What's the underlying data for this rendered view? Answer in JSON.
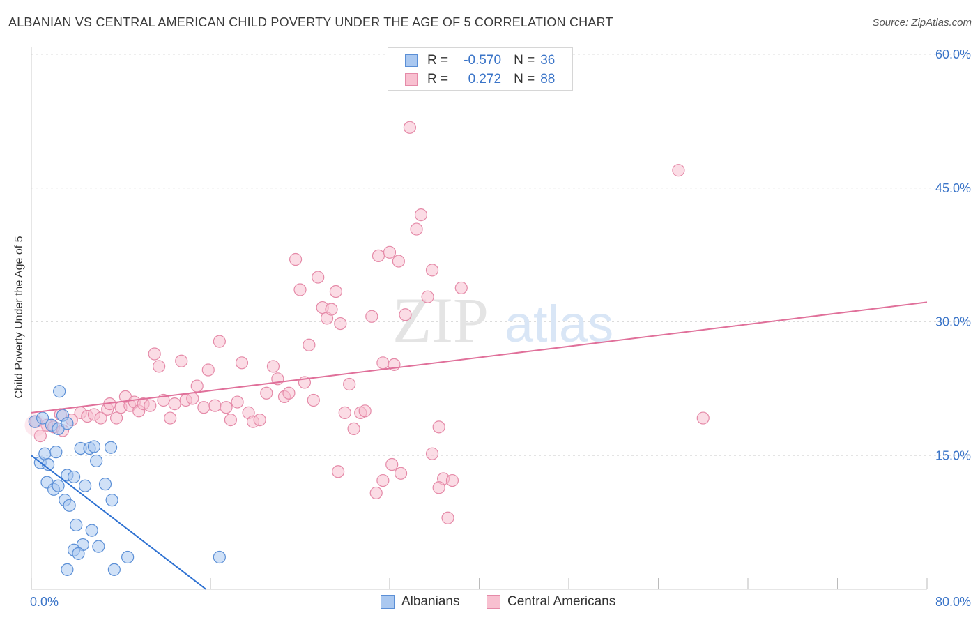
{
  "header": {
    "title": "ALBANIAN VS CENTRAL AMERICAN CHILD POVERTY UNDER THE AGE OF 5 CORRELATION CHART",
    "source": "Source: ZipAtlas.com"
  },
  "watermark": {
    "zip": "ZIP",
    "atlas": "atlas"
  },
  "colors": {
    "albanian_fill": "#aac8f0",
    "albanian_stroke": "#5b8fd6",
    "albanian_line": "#2f72d2",
    "central_fill": "#f8c0d0",
    "central_stroke": "#e58aa8",
    "central_line": "#e0709a",
    "tick_label": "#3a74c8",
    "grid": "#dcdcdc"
  },
  "legend_top": {
    "rows": [
      {
        "r_label": "R =",
        "r_value": "-0.570",
        "n_label": "N =",
        "n_value": "36"
      },
      {
        "r_label": "R =",
        "r_value": "0.272",
        "n_label": "N =",
        "n_value": "88"
      }
    ]
  },
  "legend_bottom": {
    "items": [
      "Albanians",
      "Central Americans"
    ]
  },
  "chart_data": {
    "type": "scatter",
    "title": "ALBANIAN VS CENTRAL AMERICAN CHILD POVERTY UNDER THE AGE OF 5 CORRELATION CHART",
    "xlabel": "",
    "ylabel": "Child Poverty Under the Age of 5",
    "xlim": [
      0,
      80
    ],
    "ylim": [
      0,
      60
    ],
    "x_tick_labels": [
      "0.0%",
      "80.0%"
    ],
    "y_ticks": [
      15,
      30,
      45,
      60
    ],
    "y_tick_labels": [
      "15.0%",
      "30.0%",
      "45.0%",
      "60.0%"
    ],
    "grid": true,
    "legend_placement": "top-center",
    "series": [
      {
        "name": "Albanians",
        "r": -0.57,
        "n": 36,
        "trend": {
          "x": [
            0,
            15.6
          ],
          "y": [
            15.0,
            0
          ]
        },
        "points": [
          [
            0.3,
            18.8
          ],
          [
            1.0,
            19.2
          ],
          [
            1.8,
            18.4
          ],
          [
            2.4,
            18.0
          ],
          [
            2.8,
            19.5
          ],
          [
            3.2,
            18.6
          ],
          [
            2.5,
            22.2
          ],
          [
            0.8,
            14.2
          ],
          [
            1.2,
            15.2
          ],
          [
            1.5,
            14.0
          ],
          [
            2.2,
            15.4
          ],
          [
            4.4,
            15.8
          ],
          [
            5.2,
            15.8
          ],
          [
            5.6,
            16.0
          ],
          [
            5.8,
            14.4
          ],
          [
            7.1,
            15.9
          ],
          [
            1.4,
            12.0
          ],
          [
            2.0,
            11.2
          ],
          [
            2.4,
            11.6
          ],
          [
            3.2,
            12.8
          ],
          [
            3.8,
            12.6
          ],
          [
            4.8,
            11.6
          ],
          [
            6.6,
            11.8
          ],
          [
            7.2,
            10.0
          ],
          [
            3.0,
            10.0
          ],
          [
            3.4,
            9.4
          ],
          [
            4.0,
            7.2
          ],
          [
            5.4,
            6.6
          ],
          [
            4.6,
            5.0
          ],
          [
            6.0,
            4.8
          ],
          [
            3.8,
            4.4
          ],
          [
            4.2,
            4.0
          ],
          [
            8.6,
            3.6
          ],
          [
            16.8,
            3.6
          ],
          [
            3.2,
            2.2
          ],
          [
            7.4,
            2.2
          ]
        ]
      },
      {
        "name": "Central Americans",
        "r": 0.272,
        "n": 88,
        "trend": {
          "x": [
            0,
            80
          ],
          "y": [
            19.8,
            32.2
          ]
        },
        "points": [
          [
            0.4,
            18.8
          ],
          [
            0.8,
            17.2
          ],
          [
            1.4,
            18.4
          ],
          [
            2.0,
            18.2
          ],
          [
            2.6,
            19.6
          ],
          [
            2.8,
            17.8
          ],
          [
            3.6,
            19.0
          ],
          [
            4.4,
            19.8
          ],
          [
            5.0,
            19.4
          ],
          [
            5.6,
            19.6
          ],
          [
            6.2,
            19.2
          ],
          [
            6.8,
            20.2
          ],
          [
            7.0,
            20.8
          ],
          [
            7.6,
            19.2
          ],
          [
            8.0,
            20.4
          ],
          [
            8.4,
            21.6
          ],
          [
            8.8,
            20.6
          ],
          [
            9.2,
            21.0
          ],
          [
            9.6,
            20.0
          ],
          [
            10.0,
            20.8
          ],
          [
            10.6,
            20.6
          ],
          [
            11.0,
            26.4
          ],
          [
            11.4,
            25.0
          ],
          [
            11.8,
            21.2
          ],
          [
            12.4,
            19.2
          ],
          [
            12.8,
            20.8
          ],
          [
            13.4,
            25.6
          ],
          [
            13.8,
            21.2
          ],
          [
            14.4,
            21.4
          ],
          [
            14.8,
            22.8
          ],
          [
            15.4,
            20.4
          ],
          [
            15.8,
            24.6
          ],
          [
            16.4,
            20.6
          ],
          [
            16.8,
            27.8
          ],
          [
            17.4,
            20.4
          ],
          [
            17.8,
            19.0
          ],
          [
            18.4,
            21.0
          ],
          [
            18.8,
            25.4
          ],
          [
            19.4,
            19.8
          ],
          [
            19.8,
            18.8
          ],
          [
            20.4,
            19.0
          ],
          [
            21.0,
            22.0
          ],
          [
            21.6,
            25.0
          ],
          [
            22.0,
            23.6
          ],
          [
            22.6,
            21.6
          ],
          [
            23.0,
            22.0
          ],
          [
            23.6,
            37.0
          ],
          [
            24.0,
            33.6
          ],
          [
            24.4,
            23.2
          ],
          [
            24.8,
            27.4
          ],
          [
            25.2,
            21.2
          ],
          [
            25.6,
            35.0
          ],
          [
            26.0,
            31.6
          ],
          [
            26.4,
            30.4
          ],
          [
            26.8,
            31.4
          ],
          [
            27.2,
            33.4
          ],
          [
            27.6,
            29.8
          ],
          [
            28.0,
            19.8
          ],
          [
            28.4,
            23.0
          ],
          [
            28.8,
            18.0
          ],
          [
            29.4,
            19.8
          ],
          [
            29.8,
            20.0
          ],
          [
            30.4,
            30.6
          ],
          [
            31.0,
            37.4
          ],
          [
            31.4,
            25.4
          ],
          [
            32.0,
            37.8
          ],
          [
            32.4,
            25.2
          ],
          [
            32.8,
            36.8
          ],
          [
            33.4,
            30.8
          ],
          [
            33.8,
            51.8
          ],
          [
            34.4,
            40.4
          ],
          [
            34.8,
            42.0
          ],
          [
            35.4,
            32.8
          ],
          [
            35.8,
            35.8
          ],
          [
            36.4,
            18.2
          ],
          [
            36.8,
            12.4
          ],
          [
            38.4,
            33.8
          ],
          [
            27.4,
            13.2
          ],
          [
            31.4,
            12.2
          ],
          [
            30.8,
            10.8
          ],
          [
            33.0,
            13.0
          ],
          [
            36.4,
            11.4
          ],
          [
            35.8,
            15.2
          ],
          [
            32.2,
            14.0
          ],
          [
            37.6,
            12.2
          ],
          [
            37.2,
            8.0
          ],
          [
            57.8,
            47.0
          ],
          [
            60.0,
            19.2
          ]
        ]
      }
    ]
  }
}
